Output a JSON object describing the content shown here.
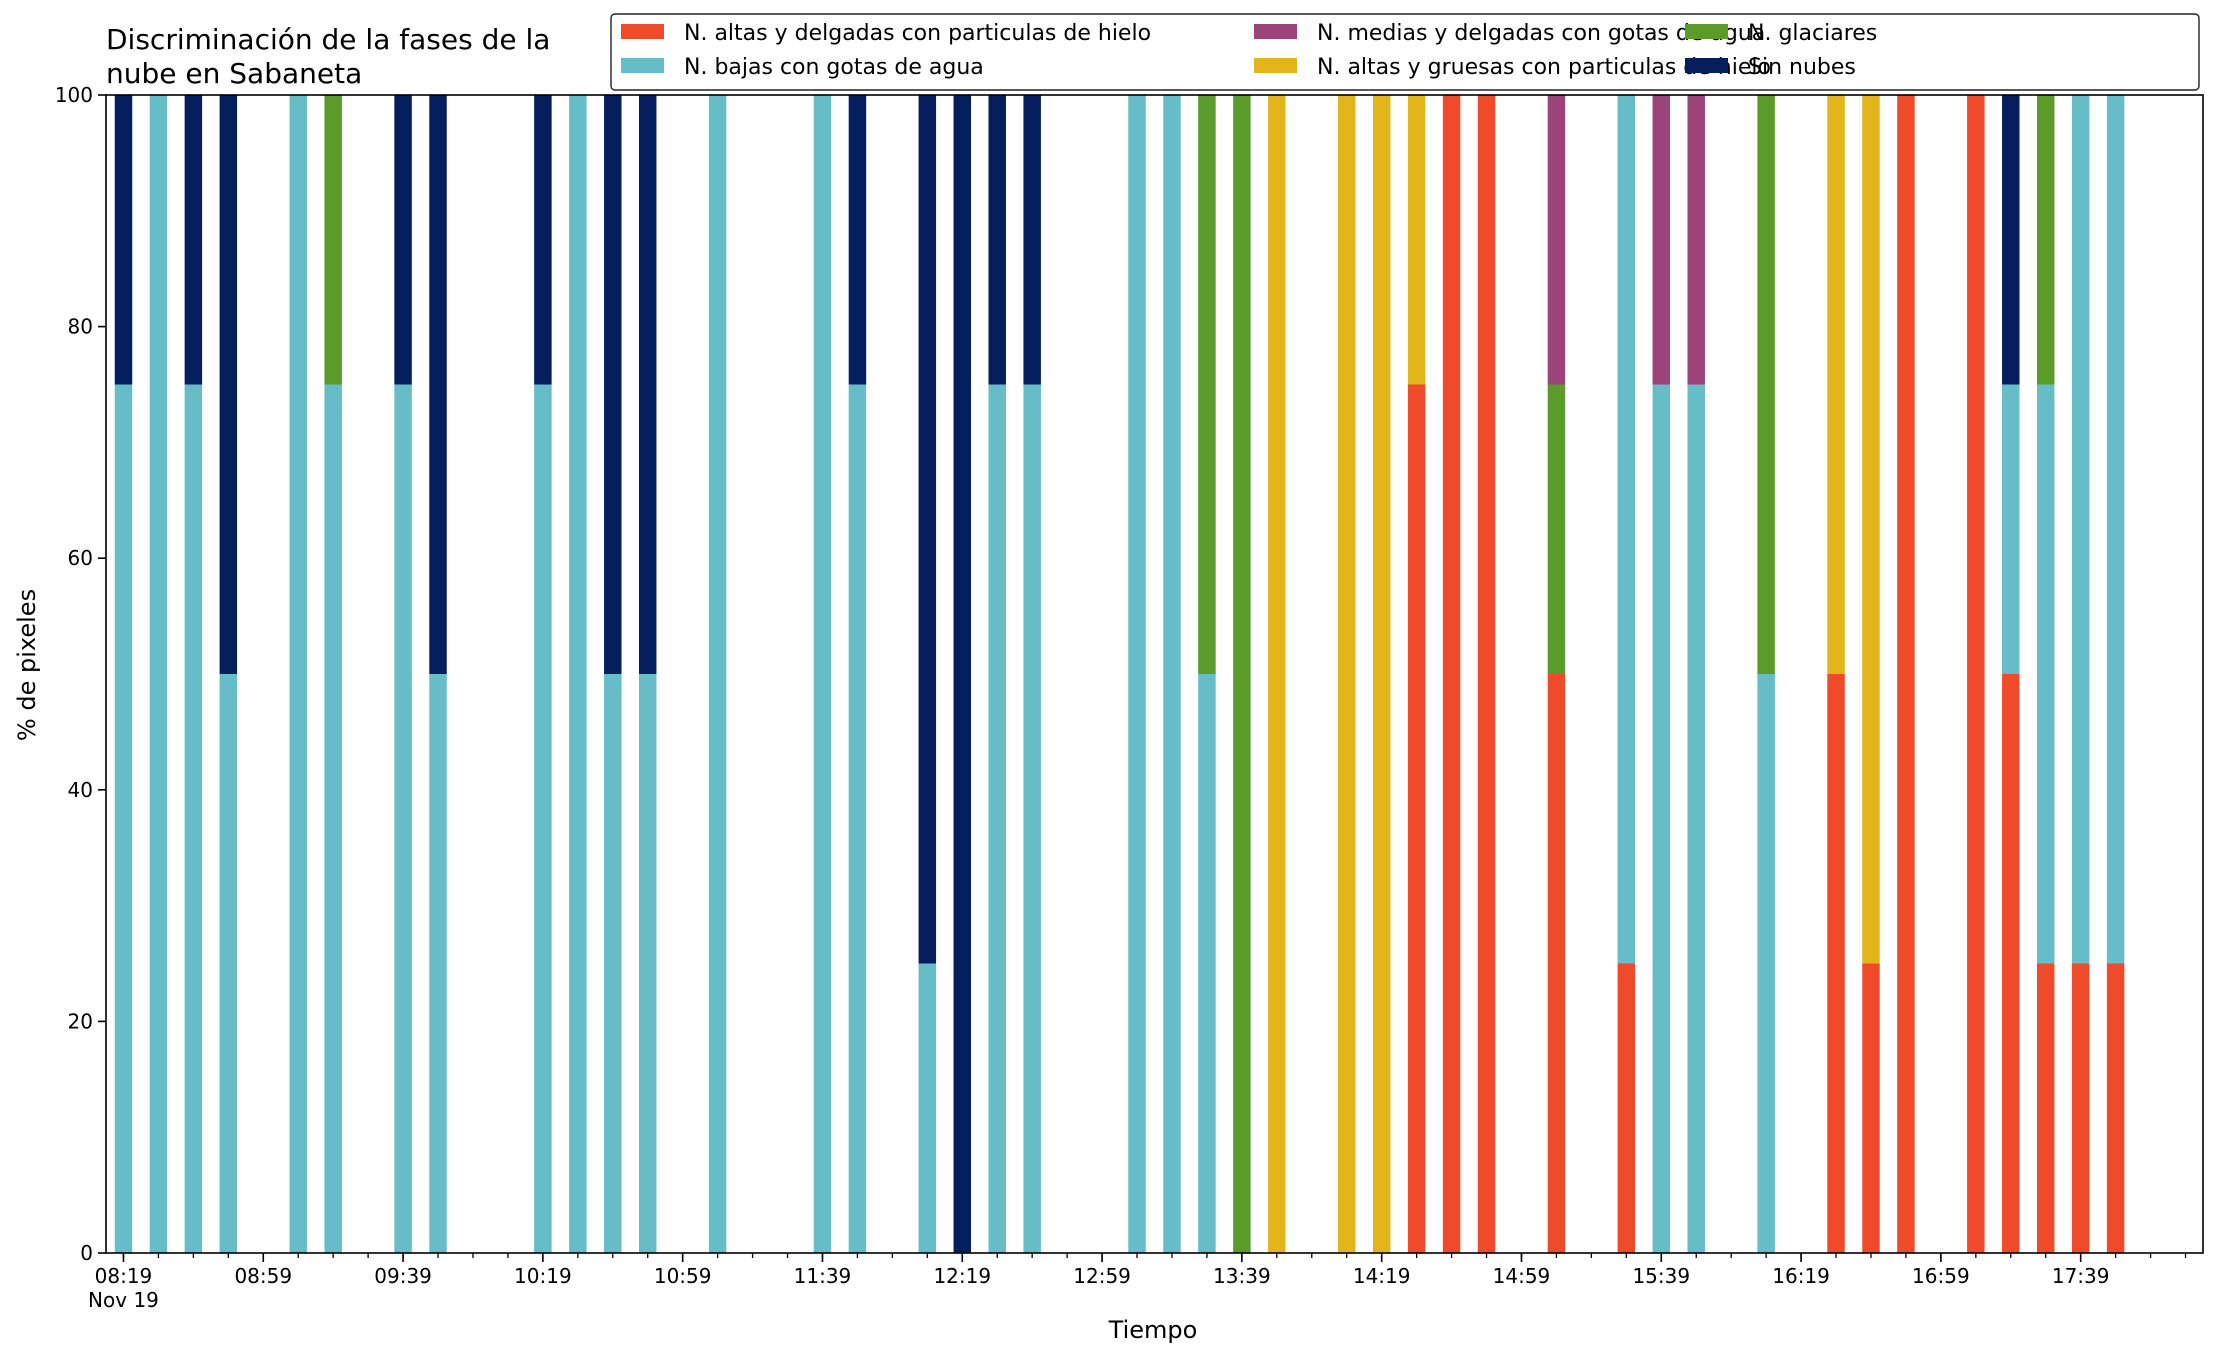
{
  "chart_data": {
    "type": "bar",
    "stacked": true,
    "title_lines": [
      "Discriminación de la fases de la",
      "nube en Sabaneta"
    ],
    "xlabel": "Tiempo",
    "ylabel": "% de pixeles",
    "ylim": [
      0,
      100
    ],
    "yticks": [
      0,
      20,
      40,
      60,
      80,
      100
    ],
    "xlim": [
      "08:14",
      "18:14"
    ],
    "bar_interval_minutes": 10,
    "xtick_labels": [
      {
        "time": "08:19",
        "label": "08:19",
        "sublabel": "Nov 19"
      },
      {
        "time": "08:59",
        "label": "08:59"
      },
      {
        "time": "09:39",
        "label": "09:39"
      },
      {
        "time": "10:19",
        "label": "10:19"
      },
      {
        "time": "10:59",
        "label": "10:59"
      },
      {
        "time": "11:39",
        "label": "11:39"
      },
      {
        "time": "12:19",
        "label": "12:19"
      },
      {
        "time": "12:59",
        "label": "12:59"
      },
      {
        "time": "13:39",
        "label": "13:39"
      },
      {
        "time": "14:19",
        "label": "14:19"
      },
      {
        "time": "14:59",
        "label": "14:59"
      },
      {
        "time": "15:39",
        "label": "15:39"
      },
      {
        "time": "16:19",
        "label": "16:19"
      },
      {
        "time": "16:59",
        "label": "16:59"
      },
      {
        "time": "17:39",
        "label": "17:39"
      }
    ],
    "legend_placement": "top",
    "series": [
      {
        "name": "N. altas y delgadas con particulas de hielo",
        "color": "#ef4a2a"
      },
      {
        "name": "N. altas y gruesas con particulas de hielo",
        "color": "#e2b51b"
      },
      {
        "name": "N. bajas con gotas de agua",
        "color": "#66bdc7"
      },
      {
        "name": "N. glaciares",
        "color": "#5a9b2a"
      },
      {
        "name": "N. medias y delgadas con gotas de agua",
        "color": "#9c447a"
      },
      {
        "name": "Sin nubes",
        "color": "#041e5e"
      }
    ],
    "legend_order": [
      0,
      2,
      4,
      1,
      3,
      5
    ],
    "bars": [
      {
        "time": "08:19",
        "values": [
          0,
          0,
          75,
          0,
          0,
          25
        ]
      },
      {
        "time": "08:29",
        "values": [
          0,
          0,
          100,
          0,
          0,
          0
        ]
      },
      {
        "time": "08:39",
        "values": [
          0,
          0,
          75,
          0,
          0,
          25
        ]
      },
      {
        "time": "08:49",
        "values": [
          0,
          0,
          50,
          0,
          0,
          50
        ]
      },
      {
        "time": "09:09",
        "values": [
          0,
          0,
          100,
          0,
          0,
          0
        ]
      },
      {
        "time": "09:19",
        "values": [
          0,
          0,
          75,
          25,
          0,
          0
        ]
      },
      {
        "time": "09:39",
        "values": [
          0,
          0,
          75,
          0,
          0,
          25
        ]
      },
      {
        "time": "09:49",
        "values": [
          0,
          0,
          50,
          0,
          0,
          50
        ]
      },
      {
        "time": "10:19",
        "values": [
          0,
          0,
          75,
          0,
          0,
          25
        ]
      },
      {
        "time": "10:29",
        "values": [
          0,
          0,
          100,
          0,
          0,
          0
        ]
      },
      {
        "time": "10:39",
        "values": [
          0,
          0,
          50,
          0,
          0,
          50
        ]
      },
      {
        "time": "10:49",
        "values": [
          0,
          0,
          50,
          0,
          0,
          50
        ]
      },
      {
        "time": "11:09",
        "values": [
          0,
          0,
          100,
          0,
          0,
          0
        ]
      },
      {
        "time": "11:39",
        "values": [
          0,
          0,
          100,
          0,
          0,
          0
        ]
      },
      {
        "time": "11:49",
        "values": [
          0,
          0,
          75,
          0,
          0,
          25
        ]
      },
      {
        "time": "12:09",
        "values": [
          0,
          0,
          25,
          0,
          0,
          75
        ]
      },
      {
        "time": "12:19",
        "values": [
          0,
          0,
          0,
          0,
          0,
          100
        ]
      },
      {
        "time": "12:29",
        "values": [
          0,
          0,
          75,
          0,
          0,
          25
        ]
      },
      {
        "time": "12:39",
        "values": [
          0,
          0,
          75,
          0,
          0,
          25
        ]
      },
      {
        "time": "13:09",
        "values": [
          0,
          0,
          100,
          0,
          0,
          0
        ]
      },
      {
        "time": "13:19",
        "values": [
          0,
          0,
          100,
          0,
          0,
          0
        ]
      },
      {
        "time": "13:29",
        "values": [
          0,
          0,
          50,
          50,
          0,
          0
        ]
      },
      {
        "time": "13:39",
        "values": [
          0,
          0,
          0,
          100,
          0,
          0
        ]
      },
      {
        "time": "13:49",
        "values": [
          0,
          100,
          0,
          0,
          0,
          0
        ]
      },
      {
        "time": "14:09",
        "values": [
          0,
          100,
          0,
          0,
          0,
          0
        ]
      },
      {
        "time": "14:19",
        "values": [
          0,
          100,
          0,
          0,
          0,
          0
        ]
      },
      {
        "time": "14:29",
        "values": [
          75,
          25,
          0,
          0,
          0,
          0
        ]
      },
      {
        "time": "14:39",
        "values": [
          100,
          0,
          0,
          0,
          0,
          0
        ]
      },
      {
        "time": "14:49",
        "values": [
          100,
          0,
          0,
          0,
          0,
          0
        ]
      },
      {
        "time": "15:09",
        "values": [
          50,
          0,
          0,
          25,
          25,
          0
        ]
      },
      {
        "time": "15:29",
        "values": [
          25,
          0,
          75,
          0,
          0,
          0
        ]
      },
      {
        "time": "15:39",
        "values": [
          0,
          0,
          75,
          0,
          25,
          0
        ]
      },
      {
        "time": "15:49",
        "values": [
          0,
          0,
          75,
          0,
          25,
          0
        ]
      },
      {
        "time": "16:09",
        "values": [
          0,
          0,
          50,
          50,
          0,
          0
        ]
      },
      {
        "time": "16:29",
        "values": [
          50,
          50,
          0,
          0,
          0,
          0
        ]
      },
      {
        "time": "16:39",
        "values": [
          25,
          75,
          0,
          0,
          0,
          0
        ]
      },
      {
        "time": "16:49",
        "values": [
          100,
          0,
          0,
          0,
          0,
          0
        ]
      },
      {
        "time": "17:09",
        "values": [
          100,
          0,
          0,
          0,
          0,
          0
        ]
      },
      {
        "time": "17:19",
        "values": [
          50,
          0,
          25,
          0,
          0,
          25
        ]
      },
      {
        "time": "17:29",
        "values": [
          25,
          0,
          50,
          25,
          0,
          0
        ]
      },
      {
        "time": "17:39",
        "values": [
          25,
          0,
          75,
          0,
          0,
          0
        ]
      },
      {
        "time": "17:49",
        "values": [
          25,
          0,
          75,
          0,
          0,
          0
        ]
      }
    ]
  }
}
